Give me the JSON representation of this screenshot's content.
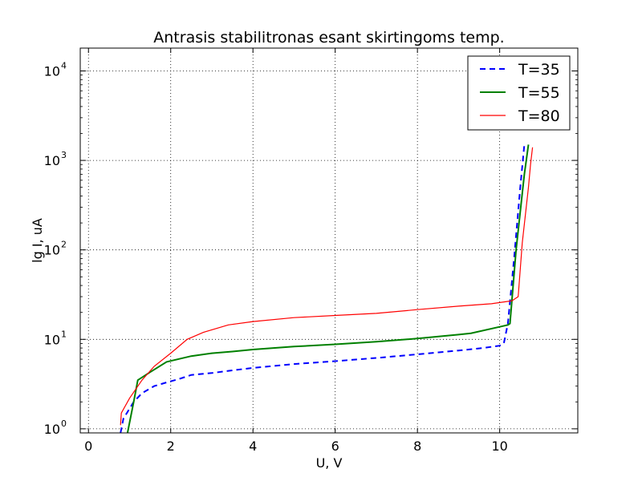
{
  "chart_data": {
    "type": "line",
    "title": "Antrasis stabilitronas esant skirtingoms temp.",
    "xlabel": "U, V",
    "ylabel": "lg I, uA",
    "xlim": [
      -0.2,
      11.9
    ],
    "ylim": [
      0.9,
      18000
    ],
    "yscale": "log",
    "grid": true,
    "legend_position": "top-right",
    "x_ticks": [
      0,
      2,
      4,
      6,
      8,
      10
    ],
    "x_tick_labels": [
      "0",
      "2",
      "4",
      "6",
      "8",
      "10"
    ],
    "y_ticks": [
      1,
      10,
      100,
      1000,
      10000
    ],
    "y_tick_labels": [
      {
        "base": "10",
        "exp": "0"
      },
      {
        "base": "10",
        "exp": "1"
      },
      {
        "base": "10",
        "exp": "2"
      },
      {
        "base": "10",
        "exp": "3"
      },
      {
        "base": "10",
        "exp": "4"
      }
    ],
    "series": [
      {
        "name": "T=35",
        "color": "#0000ff",
        "style": "dashed",
        "x": [
          0.78,
          0.85,
          1.1,
          1.3,
          1.6,
          1.9,
          2.2,
          2.5,
          3.0,
          3.5,
          4.0,
          5.0,
          6.0,
          7.0,
          8.0,
          9.0,
          9.6,
          10.0,
          10.1,
          10.2,
          10.35,
          10.5,
          10.6
        ],
        "y": [
          0.9,
          1.3,
          2.0,
          2.5,
          3.0,
          3.3,
          3.6,
          4.0,
          4.2,
          4.5,
          4.8,
          5.3,
          5.7,
          6.2,
          6.8,
          7.5,
          8.0,
          8.5,
          9.0,
          15,
          80,
          500,
          1500
        ]
      },
      {
        "name": "T=55",
        "color": "#008000",
        "style": "solid",
        "x": [
          0.95,
          1.1,
          1.2,
          1.5,
          1.9,
          2.5,
          3.0,
          3.5,
          4.0,
          5.0,
          6.0,
          7.0,
          8.0,
          9.0,
          9.3,
          10.0,
          10.2,
          10.25,
          10.4,
          10.6,
          10.7
        ],
        "y": [
          0.9,
          2.0,
          3.5,
          4.3,
          5.6,
          6.5,
          7.0,
          7.3,
          7.7,
          8.3,
          8.8,
          9.4,
          10.2,
          11.3,
          11.7,
          13.8,
          14.5,
          15,
          100,
          700,
          1500
        ]
      },
      {
        "name": "T=80",
        "color": "#ff0000",
        "style": "solid",
        "x": [
          0.78,
          0.8,
          1.0,
          1.3,
          1.6,
          2.0,
          2.4,
          2.8,
          3.4,
          4.0,
          5.0,
          6.0,
          7.0,
          8.0,
          9.0,
          9.8,
          10.3,
          10.45,
          10.55,
          10.7,
          10.75,
          10.8
        ],
        "y": [
          1.1,
          1.5,
          2.2,
          3.5,
          5.0,
          7.0,
          10.0,
          12.0,
          14.5,
          15.8,
          17.5,
          18.5,
          19.5,
          21.5,
          23.5,
          25,
          27,
          30,
          120,
          500,
          900,
          1400
        ]
      }
    ]
  }
}
